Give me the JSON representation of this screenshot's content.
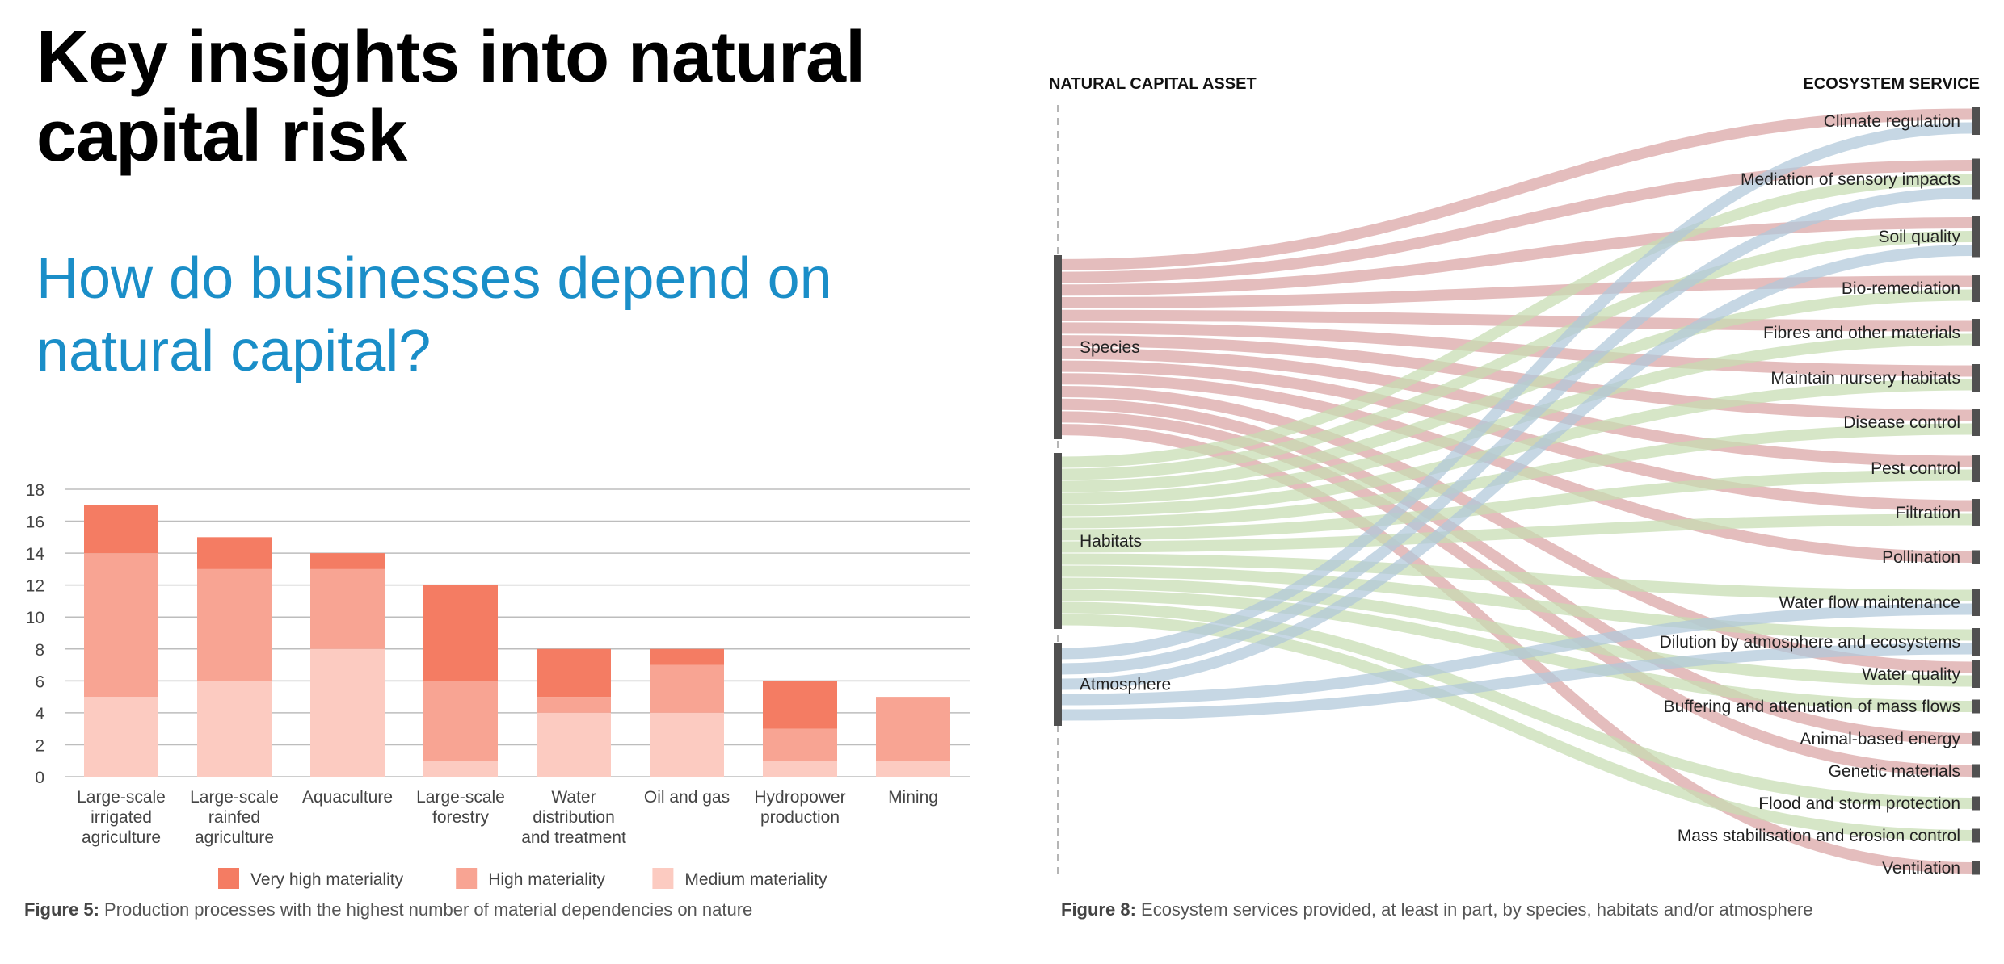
{
  "header": {
    "title": "Key insights into natural capital risk",
    "subtitle": "How do businesses depend on natural capital?"
  },
  "colors": {
    "very_high": "#f47c63",
    "high": "#f8a493",
    "medium": "#fccbc1",
    "grid": "#bdbdbd",
    "species_flow": "#d9a3a3",
    "habitats_flow": "#c6ddb1",
    "atmosphere_flow": "#b0c8d9",
    "node": "#505050",
    "title_blue": "#1a8ec8"
  },
  "chart_data": [
    {
      "type": "bar",
      "stacked": true,
      "categories": [
        "Large-scale irrigated agriculture",
        "Large-scale rainfed agriculture",
        "Aquaculture",
        "Large-scale forestry",
        "Water distribution and treatment",
        "Oil and gas",
        "Hydropower production",
        "Mining"
      ],
      "category_lines": [
        [
          "Large-scale",
          "irrigated",
          "agriculture"
        ],
        [
          "Large-scale",
          "rainfed",
          "agriculture"
        ],
        [
          "Aquaculture"
        ],
        [
          "Large-scale",
          "forestry"
        ],
        [
          "Water",
          "distribution",
          "and treatment"
        ],
        [
          "Oil and gas"
        ],
        [
          "Hydropower",
          "production"
        ],
        [
          "Mining"
        ]
      ],
      "series": [
        {
          "name": "Medium materiality",
          "color": "#fccbc1",
          "values": [
            5,
            6,
            8,
            1,
            4,
            4,
            1,
            1
          ]
        },
        {
          "name": "High materiality",
          "color": "#f8a493",
          "values": [
            9,
            7,
            5,
            5,
            1,
            3,
            2,
            4
          ]
        },
        {
          "name": "Very high materiality",
          "color": "#f47c63",
          "values": [
            3,
            2,
            1,
            6,
            3,
            1,
            3,
            0
          ]
        }
      ],
      "legend_order": [
        "Very high materiality",
        "High materiality",
        "Medium materiality"
      ],
      "ylim": [
        0,
        18
      ],
      "yticks": [
        0,
        2,
        4,
        6,
        8,
        10,
        12,
        14,
        16,
        18
      ],
      "grid": true,
      "legend_position": "bottom",
      "caption_label": "Figure 5:",
      "caption_text": " Production processes with the highest number of material dependencies on nature"
    },
    {
      "type": "sankey",
      "left_header": "NATURAL CAPITAL ASSET",
      "right_header": "ECOSYSTEM SERVICE",
      "sources": [
        "Species",
        "Habitats",
        "Atmosphere"
      ],
      "targets": [
        "Climate regulation",
        "Mediation of sensory impacts",
        "Soil quality",
        "Bio-remediation",
        "Fibres and other materials",
        "Maintain nursery habitats",
        "Disease control",
        "Pest control",
        "Filtration",
        "Pollination",
        "Water flow maintenance",
        "Dilution by atmosphere and ecosystems",
        "Water quality",
        "Buffering and attenuation of mass flows",
        "Animal-based energy",
        "Genetic materials",
        "Flood and storm protection",
        "Mass stabilisation and erosion control",
        "Ventilation"
      ],
      "links": {
        "Species": [
          "Climate regulation",
          "Mediation of sensory impacts",
          "Soil quality",
          "Bio-remediation",
          "Fibres and other materials",
          "Maintain nursery habitats",
          "Disease control",
          "Pest control",
          "Filtration",
          "Pollination",
          "Water quality",
          "Animal-based energy",
          "Genetic materials",
          "Ventilation"
        ],
        "Habitats": [
          "Mediation of sensory impacts",
          "Soil quality",
          "Bio-remediation",
          "Fibres and other materials",
          "Maintain nursery habitats",
          "Disease control",
          "Pest control",
          "Filtration",
          "Water flow maintenance",
          "Dilution by atmosphere and ecosystems",
          "Water quality",
          "Buffering and attenuation of mass flows",
          "Flood and storm protection",
          "Mass stabilisation and erosion control"
        ],
        "Atmosphere": [
          "Climate regulation",
          "Mediation of sensory impacts",
          "Soil quality",
          "Water flow maintenance",
          "Dilution by atmosphere and ecosystems"
        ]
      },
      "caption_label": "Figure 8:",
      "caption_text": " Ecosystem services provided, at least in part, by species, habitats and/or atmosphere"
    }
  ]
}
